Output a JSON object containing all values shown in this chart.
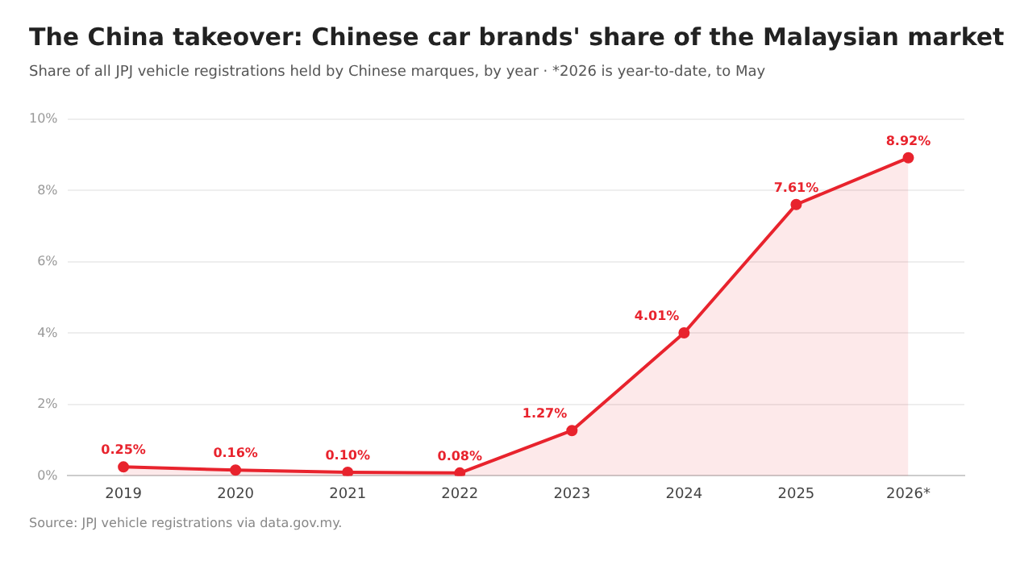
{
  "chart_data": {
    "type": "area",
    "title": "The China takeover: Chinese car brands' share of the Malaysian market",
    "subtitle": "Share of all JPJ vehicle registrations held by Chinese marques, by year · *2026 is year-to-date, to May",
    "annotations": [
      "Source: JPJ vehicle registrations via data.gov.my."
    ],
    "categories": [
      "2019",
      "2020",
      "2021",
      "2022",
      "2023",
      "2024",
      "2025",
      "2026*"
    ],
    "series": [
      {
        "color": "#e8232d",
        "values": [
          0.25,
          0.16,
          0.1,
          0.08,
          1.27,
          4.01,
          7.61,
          8.92
        ],
        "value_labels": [
          "0.25%",
          "0.16%",
          "0.10%",
          "0.08%",
          "1.27%",
          "4.01%",
          "7.61%",
          "8.92%"
        ]
      }
    ],
    "ylim": [
      0,
      10
    ],
    "yticks": [
      {
        "value": 0,
        "label": "0%"
      },
      {
        "value": 2,
        "label": "2%"
      },
      {
        "value": 4,
        "label": "4%"
      },
      {
        "value": 6,
        "label": "6%"
      },
      {
        "value": 8,
        "label": "8%"
      },
      {
        "value": 10,
        "label": "10%"
      }
    ],
    "grid": "y",
    "marker": "circle",
    "line_style": "solid",
    "legend": false
  }
}
